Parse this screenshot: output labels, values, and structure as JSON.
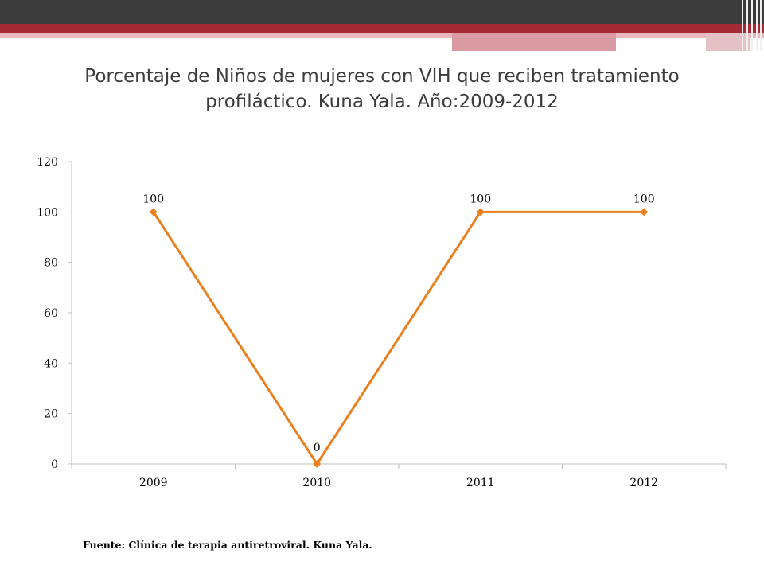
{
  "slide": {
    "title": "Porcentaje de Niños de mujeres con VIH que reciben tratamiento profiláctico. Kuna Yala. Año:2009-2012",
    "source": "Fuente: Clínica de terapia antiretroviral. Kuna Yala."
  },
  "colors": {
    "line": "#e8801d",
    "header_dark": "#3b3b3b",
    "header_red": "#a52a35"
  },
  "chart_data": {
    "type": "line",
    "categories": [
      "2009",
      "2010",
      "2011",
      "2012"
    ],
    "series": [
      {
        "values": [
          100,
          0,
          100,
          100
        ]
      }
    ],
    "data_labels": [
      "100",
      "0",
      "100",
      "100"
    ],
    "ylim": [
      0,
      120
    ],
    "yticks": [
      0,
      20,
      40,
      60,
      80,
      100,
      120
    ],
    "xlabel": "",
    "ylabel": "",
    "grid": false,
    "legend": "none",
    "marker": "diamond"
  }
}
